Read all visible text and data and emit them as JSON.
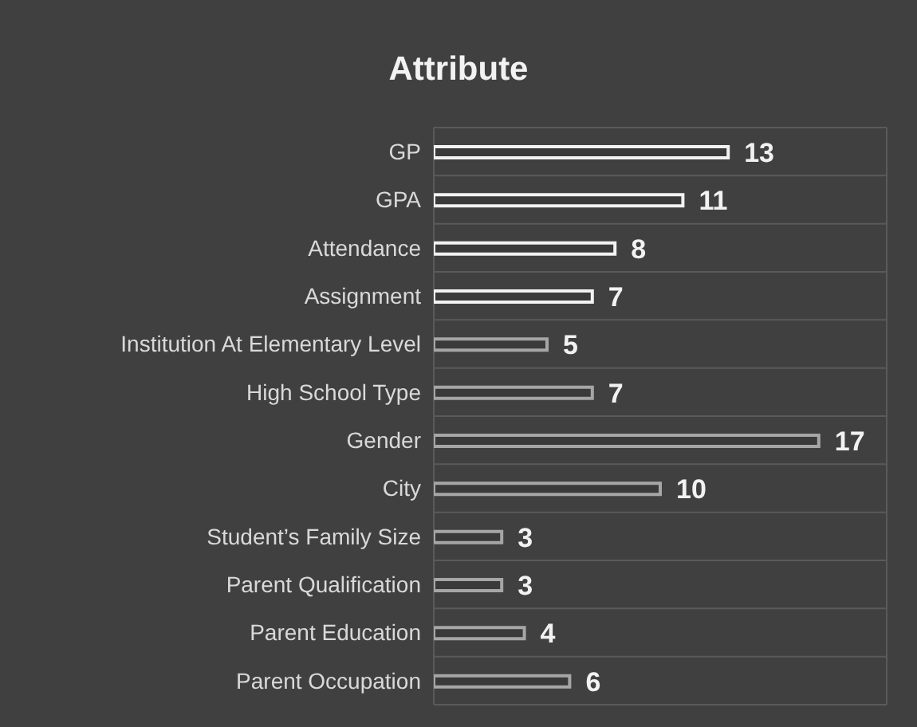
{
  "chart_data": {
    "type": "bar",
    "orientation": "horizontal",
    "title": "Attribute",
    "categories": [
      "GP",
      "GPA",
      "Attendance",
      "Assignment",
      "Institution At Elementary Level",
      "High School Type",
      "Gender",
      "City",
      "Student’s Family Size",
      "Parent Qualification",
      "Parent Education",
      "Parent Occupation"
    ],
    "values": [
      13,
      11,
      8,
      7,
      5,
      7,
      17,
      10,
      3,
      3,
      4,
      6
    ],
    "colors": [
      "#f2f2f2",
      "#f2f2f2",
      "#f2f2f2",
      "#f2f2f2",
      "#a6a6a6",
      "#a6a6a6",
      "#a6a6a6",
      "#a6a6a6",
      "#a6a6a6",
      "#a6a6a6",
      "#a6a6a6",
      "#a6a6a6"
    ],
    "xlim": [
      0,
      20
    ],
    "tick_labels": "y",
    "grid": true,
    "data_labels": true
  }
}
